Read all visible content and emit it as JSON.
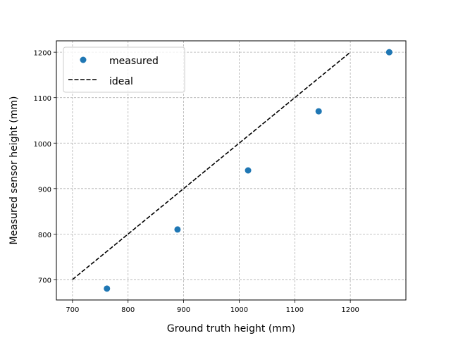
{
  "chart_data": {
    "type": "scatter",
    "title": "",
    "xlabel": "Ground truth height (mm)",
    "ylabel": "Measured sensor height (mm)",
    "xlim": [
      671,
      1300
    ],
    "ylim": [
      655,
      1225
    ],
    "xticks": [
      700,
      800,
      900,
      1000,
      1100,
      1200
    ],
    "yticks": [
      700,
      800,
      900,
      1000,
      1100,
      1200
    ],
    "grid": true,
    "legend_position": "upper left",
    "series": [
      {
        "name": "measured",
        "kind": "scatter",
        "color": "#1f77b4",
        "x": [
          762,
          889,
          1016,
          1143,
          1270
        ],
        "y": [
          680,
          810,
          940,
          1070,
          1200
        ]
      },
      {
        "name": "ideal",
        "kind": "line",
        "style": "dashed",
        "color": "#000000",
        "x": [
          700,
          1200
        ],
        "y": [
          700,
          1200
        ]
      }
    ]
  },
  "legend": {
    "items": [
      {
        "label": "measured"
      },
      {
        "label": "ideal"
      }
    ]
  },
  "axes": {
    "xlabel": "Ground truth height (mm)",
    "ylabel": "Measured sensor height (mm)",
    "xtick_labels": [
      "700",
      "800",
      "900",
      "1000",
      "1100",
      "1200"
    ],
    "ytick_labels": [
      "700",
      "800",
      "900",
      "1000",
      "1100",
      "1200"
    ]
  }
}
